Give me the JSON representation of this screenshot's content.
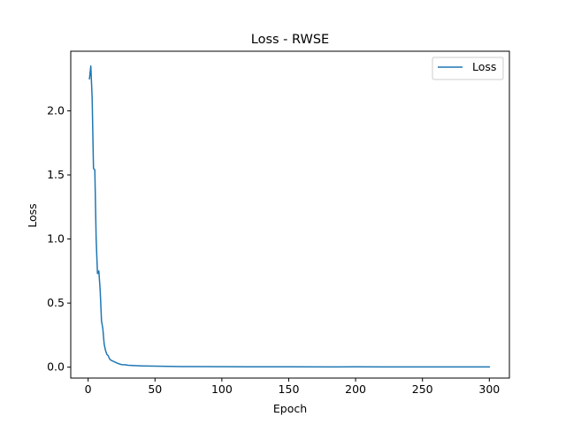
{
  "chart_data": {
    "type": "line",
    "title": "Loss - RWSE",
    "xlabel": "Epoch",
    "ylabel": "Loss",
    "xlim": [
      -13,
      315
    ],
    "ylim": [
      -0.085,
      2.465
    ],
    "xticks": [
      0,
      50,
      100,
      150,
      200,
      250,
      300
    ],
    "xtick_labels": [
      "0",
      "50",
      "100",
      "150",
      "200",
      "250",
      "300"
    ],
    "yticks": [
      0.0,
      0.5,
      1.0,
      1.5,
      2.0
    ],
    "ytick_labels": [
      "0.0",
      "0.5",
      "1.0",
      "1.5",
      "2.0"
    ],
    "grid": false,
    "legend_position": "top-right",
    "series": [
      {
        "name": "Loss",
        "color": "#1f77b4",
        "x": [
          1,
          2,
          3,
          4,
          5,
          6,
          7,
          8,
          9,
          10,
          11,
          12,
          13,
          14,
          15,
          16,
          17,
          18,
          19,
          20,
          22,
          25,
          28,
          30,
          35,
          40,
          50,
          60,
          70,
          80,
          100,
          120,
          150,
          180,
          200,
          220,
          250,
          280,
          300
        ],
        "y": [
          2.25,
          2.35,
          2.1,
          1.55,
          1.54,
          1.0,
          0.73,
          0.75,
          0.6,
          0.36,
          0.3,
          0.18,
          0.13,
          0.1,
          0.09,
          0.065,
          0.055,
          0.05,
          0.045,
          0.04,
          0.03,
          0.02,
          0.018,
          0.015,
          0.012,
          0.01,
          0.008,
          0.006,
          0.005,
          0.005,
          0.004,
          0.003,
          0.003,
          0.002,
          0.003,
          0.002,
          0.002,
          0.002,
          0.002
        ]
      }
    ]
  }
}
